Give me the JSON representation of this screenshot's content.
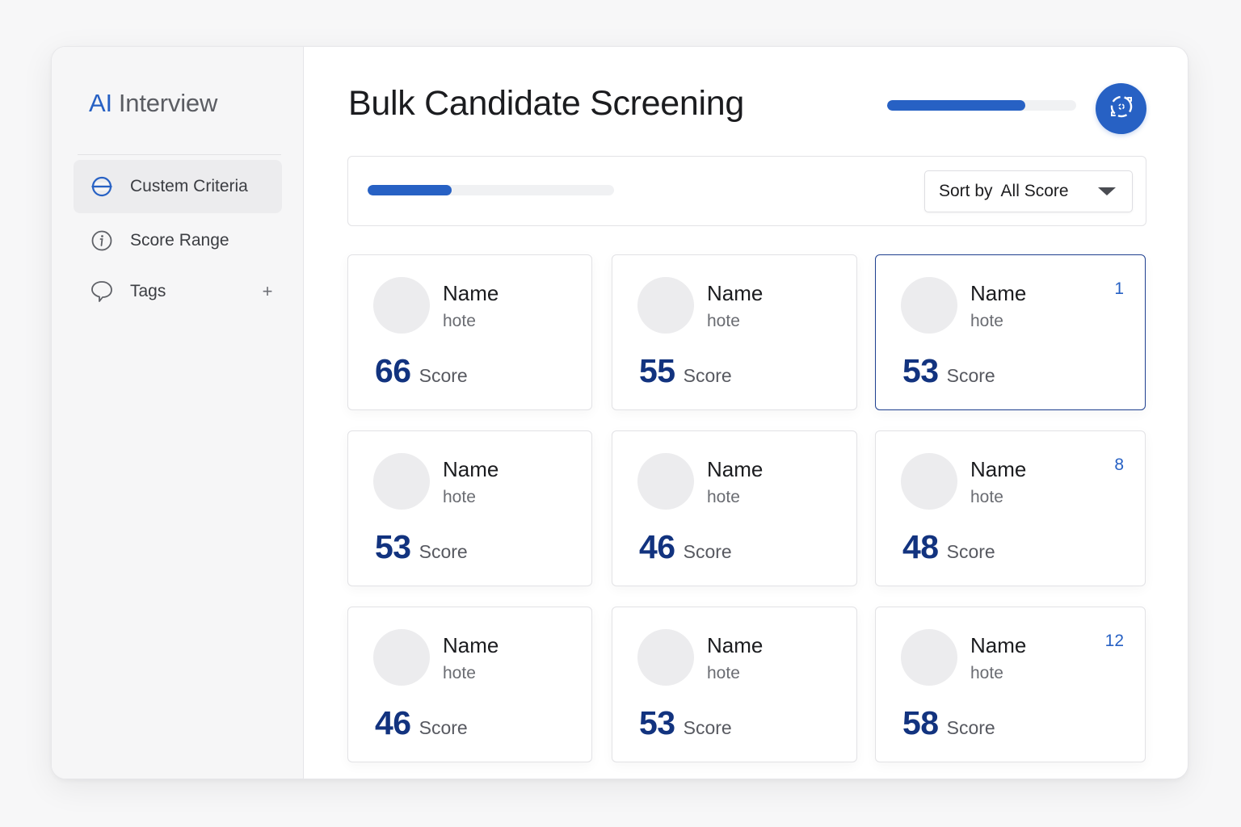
{
  "sidebar": {
    "brand": {
      "ai": "AI",
      "rest": "Interview"
    },
    "items": [
      {
        "label": "Custem Criteria",
        "icon": "criteria-icon",
        "active": true
      },
      {
        "label": "Score Range",
        "icon": "info-icon",
        "active": false
      },
      {
        "label": "Tags",
        "icon": "tag-icon",
        "active": false,
        "action": "+"
      }
    ]
  },
  "header": {
    "title": "Bulk Candidate Screening",
    "progress": 0.73,
    "refresh_icon": "refresh-icon"
  },
  "toolbar": {
    "progress": 0.34,
    "sort_label": "Sort by",
    "sort_value": "All Score",
    "sort_icon": "chevron-down-icon"
  },
  "candidates": [
    {
      "name": "Name",
      "sub": "hote",
      "score": "66",
      "score_label": "Score",
      "rank": "",
      "selected": false
    },
    {
      "name": "Name",
      "sub": "hote",
      "score": "55",
      "score_label": "Score",
      "rank": "",
      "selected": false
    },
    {
      "name": "Name",
      "sub": "hote",
      "score": "53",
      "score_label": "Score",
      "rank": "1",
      "selected": true
    },
    {
      "name": "Name",
      "sub": "hote",
      "score": "53",
      "score_label": "Score",
      "rank": "",
      "selected": false
    },
    {
      "name": "Name",
      "sub": "hote",
      "score": "46",
      "score_label": "Score",
      "rank": "",
      "selected": false
    },
    {
      "name": "Name",
      "sub": "hote",
      "score": "48",
      "score_label": "Score",
      "rank": "8",
      "selected": false
    },
    {
      "name": "Name",
      "sub": "hote",
      "score": "46",
      "score_label": "Score",
      "rank": "",
      "selected": false
    },
    {
      "name": "Name",
      "sub": "hote",
      "score": "53",
      "score_label": "Score",
      "rank": "",
      "selected": false
    },
    {
      "name": "Name",
      "sub": "hote",
      "score": "58",
      "score_label": "Score",
      "rank": "12",
      "selected": false
    }
  ],
  "colors": {
    "accent": "#2761c4",
    "score": "#12337f",
    "selected_border": "#1e3f8f"
  }
}
